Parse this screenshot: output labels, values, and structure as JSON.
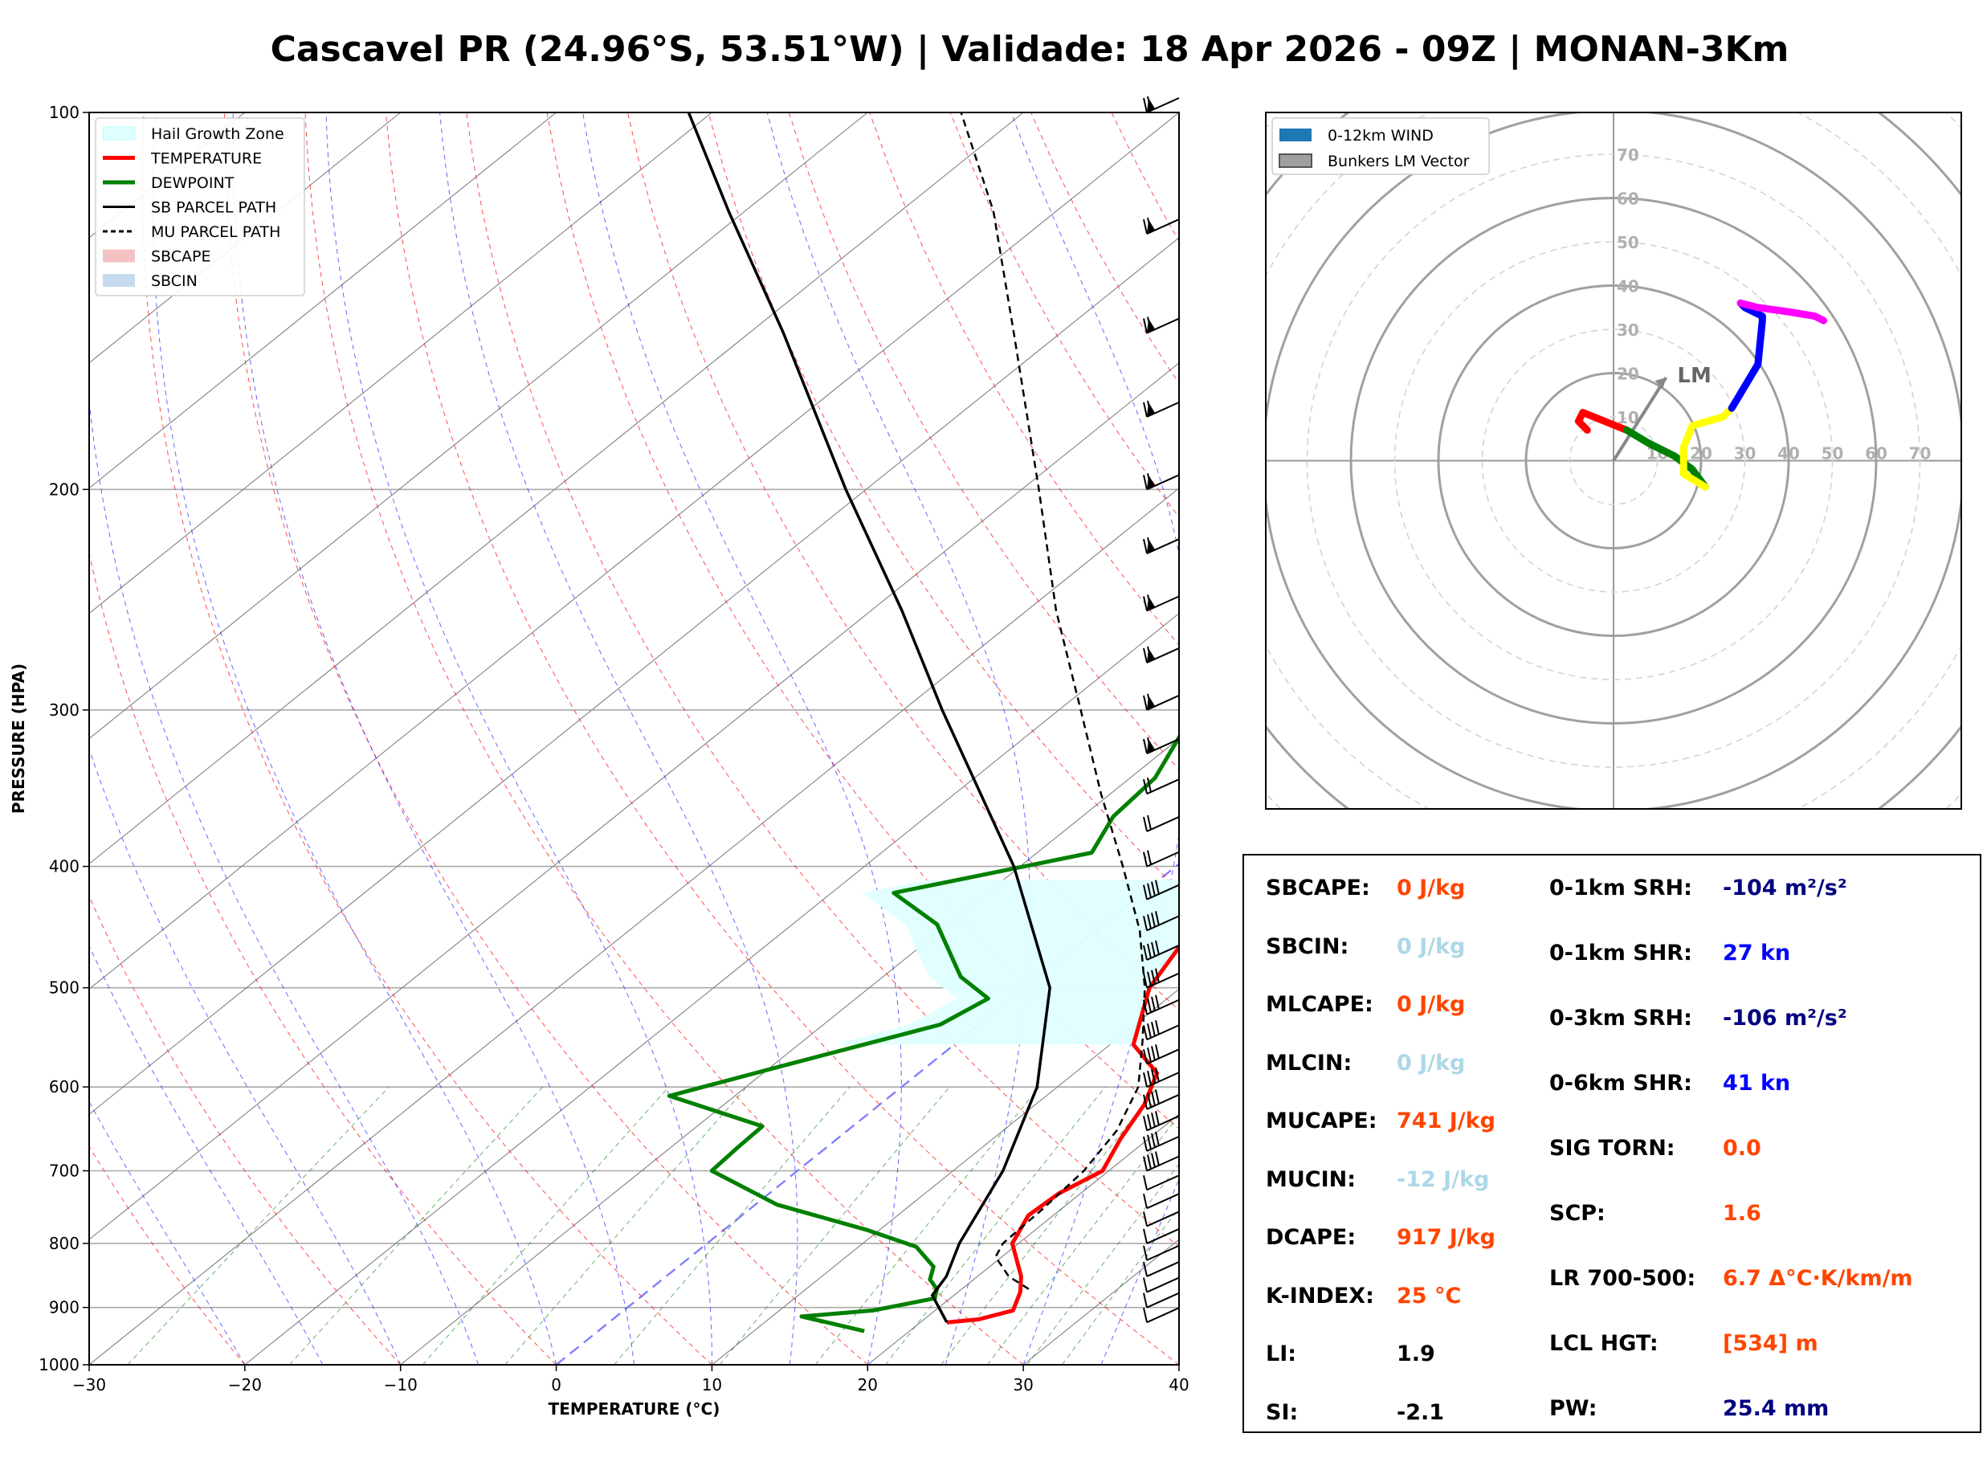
{
  "title": "Cascavel PR (24.96°S, 53.51°W) | Validade: 18 Apr 2026 - 09Z | MONAN-3Km",
  "colors": {
    "temperature": "#ff0000",
    "dewpoint": "#008000",
    "sb_parcel": "#000000",
    "mu_parcel": "#000000",
    "hail_zone": "#e0ffff",
    "sbcape": "#f4c2c2",
    "sbcin": "#c6dbef",
    "dry_adiabat": "#ff0000",
    "moist_adiabat": "#0000ff",
    "mixing_ratio": "#008000",
    "isotherm": "#808080",
    "zero_isotherm": "#8080ff",
    "value_orange": "#ff4500",
    "value_lightblue": "#add8e6",
    "value_navy": "#000080",
    "value_blue": "#0000ff",
    "value_black": "#000000"
  },
  "chart_data": [
    {
      "type": "line",
      "title": "Skew-T",
      "xlabel": "TEMPERATURE (°C)",
      "ylabel": "PRESSURE (HPA)",
      "xlim": [
        -30,
        40
      ],
      "ylim": [
        1000,
        100
      ],
      "x_ticks": [
        "−30",
        "−20",
        "−10",
        "0",
        "10",
        "20",
        "30",
        "40"
      ],
      "x_tick_values": [
        -30,
        -20,
        -10,
        0,
        10,
        20,
        30,
        40
      ],
      "y_ticks": [
        "1000",
        "900",
        "800",
        "700",
        "600",
        "500",
        "400",
        "300",
        "200",
        "100"
      ],
      "y_tick_values": [
        1000,
        900,
        800,
        700,
        600,
        500,
        400,
        300,
        200,
        100
      ],
      "skew_deg_per_log_decade": 100,
      "legend": {
        "position": "top-left",
        "entries": [
          {
            "label": "Hail Growth Zone",
            "style": "patch"
          },
          {
            "label": "TEMPERATURE",
            "style": "line-red"
          },
          {
            "label": "DEWPOINT",
            "style": "line-green"
          },
          {
            "label": "SB PARCEL PATH",
            "style": "line-black"
          },
          {
            "label": "MU PARCEL PATH",
            "style": "dashed-black"
          },
          {
            "label": "SBCAPE",
            "style": "patch-red"
          },
          {
            "label": "SBCIN",
            "style": "patch-blue"
          }
        ]
      },
      "series": [
        {
          "name": "TEMPERATURE",
          "points": [
            [
              925,
              21.7
            ],
            [
              920,
              23.5
            ],
            [
              905,
              25.0
            ],
            [
              875,
              24.0
            ],
            [
              850,
              22.8
            ],
            [
              800,
              19.6
            ],
            [
              760,
              18.4
            ],
            [
              730,
              18.6
            ],
            [
              700,
              19.6
            ],
            [
              660,
              18.2
            ],
            [
              620,
              17.0
            ],
            [
              585,
              15.3
            ],
            [
              555,
              11.5
            ],
            [
              500,
              8.0
            ],
            [
              430,
              5.3
            ],
            [
              390,
              3.1
            ],
            [
              330,
              -0.2
            ],
            [
              295,
              -2.9
            ],
            [
              265,
              -6.0
            ],
            [
              225,
              -11.7
            ],
            [
              210,
              -14.3
            ],
            [
              190,
              -20.8
            ],
            [
              170,
              -27.4
            ],
            [
              150,
              -34.3
            ],
            [
              140,
              -37.3
            ],
            [
              125,
              -41.5
            ],
            [
              115,
              -45.9
            ],
            [
              100,
              -53.6
            ]
          ]
        },
        {
          "name": "DEWPOINT",
          "points": [
            [
              940,
              17.1
            ],
            [
              925,
              14.0
            ],
            [
              915,
              11.9
            ],
            [
              905,
              16.0
            ],
            [
              885,
              19.0
            ],
            [
              870,
              18.4
            ],
            [
              855,
              17.2
            ],
            [
              835,
              16.4
            ],
            [
              805,
              13.7
            ],
            [
              780,
              9.1
            ],
            [
              745,
              1.4
            ],
            [
              700,
              -5.5
            ],
            [
              670,
              -5.7
            ],
            [
              645,
              -5.8
            ],
            [
              610,
              -14.2
            ],
            [
              575,
              -9.0
            ],
            [
              535,
              -2.5
            ],
            [
              510,
              -1.5
            ],
            [
              490,
              -5.0
            ],
            [
              445,
              -10.7
            ],
            [
              420,
              -16.0
            ],
            [
              390,
              -6.5
            ],
            [
              365,
              -8.0
            ],
            [
              340,
              -8.4
            ],
            [
              310,
              -10.5
            ],
            [
              285,
              -10.2
            ],
            [
              260,
              -14.7
            ],
            [
              235,
              -21.4
            ],
            [
              215,
              -19.7
            ],
            [
              190,
              -28.1
            ],
            [
              165,
              -29.6
            ],
            [
              150,
              -34.3
            ],
            [
              130,
              -35.6
            ],
            [
              115,
              -35.8
            ],
            [
              100,
              -37.9
            ]
          ]
        },
        {
          "name": "SB PARCEL PATH",
          "points": [
            [
              925,
              21.7
            ],
            [
              880,
              18.6
            ],
            [
              850,
              18.0
            ],
            [
              800,
              16.2
            ],
            [
              700,
              13.2
            ],
            [
              600,
              8.7
            ],
            [
              500,
              1.6
            ],
            [
              400,
              -10.4
            ],
            [
              300,
              -27.5
            ],
            [
              250,
              -38.0
            ],
            [
              200,
              -51.3
            ],
            [
              150,
              -67.8
            ],
            [
              120,
              -81.0
            ],
            [
              100,
              -91.5
            ]
          ]
        },
        {
          "name": "MU PARCEL PATH",
          "points": [
            [
              870,
              24.3
            ],
            [
              850,
              22.0
            ],
            [
              820,
              19.6
            ],
            [
              800,
              19.0
            ],
            [
              750,
              18.8
            ],
            [
              700,
              18.4
            ],
            [
              650,
              17.3
            ],
            [
              600,
              15.2
            ],
            [
              550,
              11.7
            ],
            [
              500,
              7.7
            ],
            [
              450,
              2.8
            ],
            [
              400,
              -3.4
            ],
            [
              350,
              -10.6
            ],
            [
              300,
              -18.6
            ],
            [
              250,
              -28.1
            ],
            [
              200,
              -38.9
            ],
            [
              150,
              -53.0
            ],
            [
              120,
              -64.0
            ],
            [
              100,
              -74.0
            ]
          ]
        }
      ],
      "hail_growth_zone": {
        "bottom_hpa": 555,
        "top_hpa": 410
      },
      "wind_barbs": {
        "description": "plotted along right axis from 925 to 100 hPa"
      }
    },
    {
      "type": "line",
      "title": "Hodograph",
      "xlim": [
        -80,
        80
      ],
      "ylim": [
        -80,
        80
      ],
      "range_ring_labels": [
        "10",
        "20",
        "30",
        "40",
        "50",
        "60",
        "70"
      ],
      "range_ring_values": [
        10,
        20,
        30,
        40,
        50,
        60,
        70
      ],
      "legend": {
        "position": "top-left",
        "entries": [
          {
            "label": "0-12km WIND",
            "style": "patch-blue"
          },
          {
            "label": "Bunkers LM Vector",
            "style": "patch-gray"
          }
        ]
      },
      "bunkers_lm": {
        "label": "LM",
        "u": 12,
        "v": 19
      },
      "segments": [
        {
          "name": "0-1km",
          "color": "#ff0000",
          "points": [
            [
              3,
              7
            ],
            [
              -2,
              9
            ],
            [
              -7,
              11
            ],
            [
              -8,
              9
            ],
            [
              -6,
              7
            ]
          ]
        },
        {
          "name": "1-3km",
          "color": "#008000",
          "points": [
            [
              21,
              -6
            ],
            [
              18,
              -2
            ],
            [
              14,
              1
            ],
            [
              8,
              4
            ],
            [
              3,
              7
            ]
          ]
        },
        {
          "name": "3-6km",
          "color": "#ffff00",
          "points": [
            [
              21,
              -6
            ],
            [
              16,
              -3
            ],
            [
              16,
              3
            ],
            [
              18,
              8
            ],
            [
              25,
              10
            ],
            [
              27,
              12
            ]
          ]
        },
        {
          "name": "6-9km",
          "color": "#0000ff",
          "points": [
            [
              27,
              12
            ],
            [
              33,
              22
            ],
            [
              34,
              32
            ],
            [
              34,
              33
            ],
            [
              30,
              35
            ],
            [
              29,
              36
            ]
          ]
        },
        {
          "name": "9-12km",
          "color": "#ff00ff",
          "points": [
            [
              29,
              36
            ],
            [
              33,
              35
            ],
            [
              40,
              34
            ],
            [
              46,
              33
            ],
            [
              48,
              32
            ]
          ]
        }
      ]
    }
  ],
  "params": {
    "left": [
      {
        "label": "SBCAPE:",
        "value": "0 J/kg",
        "color": "#ff4500"
      },
      {
        "label": "SBCIN:",
        "value": "0 J/kg",
        "color": "#add8e6"
      },
      {
        "label": "MLCAPE:",
        "value": "0 J/kg",
        "color": "#ff4500"
      },
      {
        "label": "MLCIN:",
        "value": "0 J/kg",
        "color": "#add8e6"
      },
      {
        "label": "MUCAPE:",
        "value": "741 J/kg",
        "color": "#ff4500"
      },
      {
        "label": "MUCIN:",
        "value": "-12 J/kg",
        "color": "#add8e6"
      },
      {
        "label": "DCAPE:",
        "value": "917 J/kg",
        "color": "#ff4500"
      },
      {
        "label": "K-INDEX:",
        "value": "25 °C",
        "color": "#ff4500"
      },
      {
        "label": "LI:",
        "value": "1.9",
        "color": "#000000"
      },
      {
        "label": "SI:",
        "value": "-2.1",
        "color": "#000000"
      }
    ],
    "right": [
      {
        "label": "0-1km SRH:",
        "value": "-104 m²/s²",
        "color": "#000080"
      },
      {
        "label": "0-1km SHR:",
        "value": "27 kn",
        "color": "#0000ff"
      },
      {
        "label": "0-3km SRH:",
        "value": "-106 m²/s²",
        "color": "#000080"
      },
      {
        "label": "0-6km SHR:",
        "value": "41 kn",
        "color": "#0000ff"
      },
      {
        "label": "SIG TORN:",
        "value": "0.0",
        "color": "#ff4500"
      },
      {
        "label": "SCP:",
        "value": "1.6",
        "color": "#ff4500"
      },
      {
        "label": "LR 700-500:",
        "value": "6.7 Δ°C·K/km/m",
        "color": "#ff4500"
      },
      {
        "label": "LCL HGT:",
        "value": "[534] m",
        "color": "#ff4500"
      },
      {
        "label": "PW:",
        "value": "25.4 mm",
        "color": "#000080"
      }
    ]
  }
}
